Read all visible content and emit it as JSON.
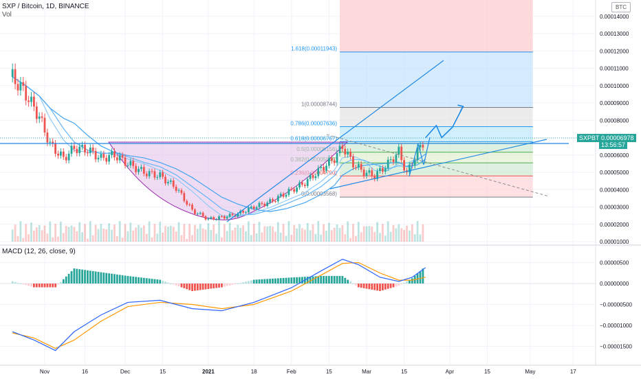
{
  "header": {
    "symbol_line": "SXP / Bitcoin, 1D, BINANCE",
    "volume_label": "Vol",
    "currency_badge": "BTC"
  },
  "macd_label": "MACD (12, 26, close, 9)",
  "price_scale": [
    "0.00014000",
    "0.00013000",
    "0.00012000",
    "0.00011000",
    "0.00010000",
    "0.00009000",
    "0.00008000",
    "0.00007000",
    "0.00006000",
    "0.00005000",
    "0.00004000",
    "0.00003000",
    "0.00002000",
    "0.00001000"
  ],
  "macd_scale": [
    "0.00000500",
    "0.00000000",
    "−0.00000500",
    "−0.00001000",
    "−0.00001500"
  ],
  "time_axis": [
    "Nov",
    "16",
    "Dec",
    "15",
    "2021",
    "18",
    "Feb",
    "15",
    "Mar",
    "15",
    "Apr",
    "15",
    "May",
    "17"
  ],
  "current_price": {
    "ticker": "SXPBTC",
    "price": "0.00006978",
    "countdown": "13:56:57"
  },
  "fib_levels": [
    {
      "label": "1.618(0.00011943)",
      "value": 0.00011943
    },
    {
      "label": "1(0.00008744)",
      "value": 8.744e-05
    },
    {
      "label": "0.786(0.00007636)",
      "value": 7.636e-05
    },
    {
      "label": "0.618(0.00006767)",
      "value": 6.767e-05
    },
    {
      "label": "0.5(0.00006156)",
      "value": 6.156e-05
    },
    {
      "label": "0.382(0.00005545)",
      "value": 5.545e-05
    },
    {
      "label": "0.236(0.00004790)",
      "value": 4.79e-05
    },
    {
      "label": "0(0.00003568)",
      "value": 3.568e-05
    }
  ],
  "colors": {
    "up": "#26a69a",
    "down": "#ef5350",
    "macd_line": "#2962ff",
    "signal_line": "#ff9800",
    "hist_up_strong": "#26a69a",
    "hist_up_weak": "#b2dfdb",
    "hist_down_strong": "#ef5350",
    "hist_down_weak": "#ffcdd2",
    "cup_fill": "#e1bee7",
    "projection": "#1e88e5",
    "fib_top": "#ffcdd2",
    "fib_blue": "#bbdefb"
  },
  "chart_data": {
    "type": "candlestick",
    "title": "SXP / Bitcoin, 1D, BINANCE",
    "ylim": [
      5e-06,
      0.000145
    ],
    "x_range": [
      "2020-10-20",
      "2021-05-31"
    ],
    "close_trace": [
      {
        "date": "2020-10-20",
        "close": 0.000105
      },
      {
        "date": "2020-10-25",
        "close": 9.5e-05
      },
      {
        "date": "2020-10-30",
        "close": 8.2e-05
      },
      {
        "date": "2020-11-03",
        "close": 6.6e-05
      },
      {
        "date": "2020-11-08",
        "close": 5.8e-05
      },
      {
        "date": "2020-11-12",
        "close": 6.4e-05
      },
      {
        "date": "2020-11-17",
        "close": 6.3e-05
      },
      {
        "date": "2020-11-22",
        "close": 5.8e-05
      },
      {
        "date": "2020-11-27",
        "close": 6e-05
      },
      {
        "date": "2020-12-02",
        "close": 5.5e-05
      },
      {
        "date": "2020-12-08",
        "close": 5e-05
      },
      {
        "date": "2020-12-14",
        "close": 4.8e-05
      },
      {
        "date": "2020-12-20",
        "close": 4.1e-05
      },
      {
        "date": "2020-12-26",
        "close": 2.8e-05
      },
      {
        "date": "2021-01-01",
        "close": 2.3e-05
      },
      {
        "date": "2021-01-06",
        "close": 2.4e-05
      },
      {
        "date": "2021-01-12",
        "close": 2.6e-05
      },
      {
        "date": "2021-01-18",
        "close": 3e-05
      },
      {
        "date": "2021-01-24",
        "close": 3.3e-05
      },
      {
        "date": "2021-01-30",
        "close": 3.8e-05
      },
      {
        "date": "2021-02-06",
        "close": 4.4e-05
      },
      {
        "date": "2021-02-12",
        "close": 5.2e-05
      },
      {
        "date": "2021-02-17",
        "close": 5.8e-05
      },
      {
        "date": "2021-02-20",
        "close": 6.5e-05
      },
      {
        "date": "2021-02-24",
        "close": 5.5e-05
      },
      {
        "date": "2021-02-28",
        "close": 5e-05
      },
      {
        "date": "2021-03-04",
        "close": 4.8e-05
      },
      {
        "date": "2021-03-09",
        "close": 5.5e-05
      },
      {
        "date": "2021-03-13",
        "close": 6.2e-05
      },
      {
        "date": "2021-03-16",
        "close": 4.9e-05
      },
      {
        "date": "2021-03-20",
        "close": 6.2e-05
      },
      {
        "date": "2021-03-23",
        "close": 6.978e-05
      }
    ],
    "projection_path": [
      {
        "date": "2021-03-23",
        "value": 7e-05
      },
      {
        "date": "2021-03-27",
        "value": 7.7e-05
      },
      {
        "date": "2021-03-29",
        "value": 7e-05
      },
      {
        "date": "2021-04-02",
        "value": 7.6e-05
      },
      {
        "date": "2021-04-06",
        "value": 8.8e-05
      }
    ],
    "macd": [
      {
        "date": "2020-10-20",
        "macd": -1.15e-05,
        "signal": -1.18e-05
      },
      {
        "date": "2020-10-28",
        "macd": -1.35e-05,
        "signal": -1.3e-05
      },
      {
        "date": "2020-11-05",
        "macd": -1.6e-05,
        "signal": -1.55e-05
      },
      {
        "date": "2020-11-12",
        "macd": -1.15e-05,
        "signal": -1.35e-05
      },
      {
        "date": "2020-11-22",
        "macd": -7.5e-06,
        "signal": -9e-06
      },
      {
        "date": "2020-12-02",
        "macd": -4.5e-06,
        "signal": -5.5e-06
      },
      {
        "date": "2020-12-14",
        "macd": -4e-06,
        "signal": -4.5e-06
      },
      {
        "date": "2020-12-26",
        "macd": -6e-06,
        "signal": -5e-06
      },
      {
        "date": "2021-01-06",
        "macd": -6.5e-06,
        "signal": -6e-06
      },
      {
        "date": "2021-01-18",
        "macd": -4.5e-06,
        "signal": -5e-06
      },
      {
        "date": "2021-02-01",
        "macd": -1e-06,
        "signal": -1.8e-06
      },
      {
        "date": "2021-02-12",
        "macd": 3e-06,
        "signal": 2e-06
      },
      {
        "date": "2021-02-20",
        "macd": 5.8e-06,
        "signal": 4.8e-06
      },
      {
        "date": "2021-02-26",
        "macd": 4.5e-06,
        "signal": 5e-06
      },
      {
        "date": "2021-03-06",
        "macd": 1.5e-06,
        "signal": 2.5e-06
      },
      {
        "date": "2021-03-13",
        "macd": 5e-07,
        "signal": 8e-07
      },
      {
        "date": "2021-03-18",
        "macd": 1.5e-06,
        "signal": 8e-07
      },
      {
        "date": "2021-03-23",
        "macd": 3.8e-06,
        "signal": 1.5e-06
      }
    ]
  }
}
